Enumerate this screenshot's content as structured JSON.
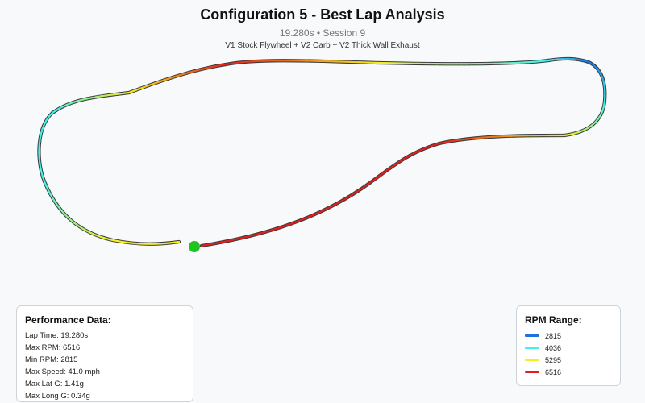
{
  "header": {
    "title": "Configuration 5 - Best Lap Analysis",
    "subtitle": "19.280s • Session 9",
    "config": "V1 Stock Flywheel + V2 Carb + V2 Thick Wall Exhaust"
  },
  "performance": {
    "heading": "Performance Data:",
    "rows": [
      "Lap Time: 19.280s",
      "Max RPM: 6516",
      "Min RPM: 2815",
      "Max Speed: 41.0 mph",
      "Max Lat G: 1.41g",
      "Max Long G: 0.34g"
    ]
  },
  "legend": {
    "heading": "RPM Range:",
    "items": [
      {
        "label": "2815",
        "color": "#1f6fe0"
      },
      {
        "label": "4036",
        "color": "#3ff0f0"
      },
      {
        "label": "5295",
        "color": "#f5f020"
      },
      {
        "label": "6516",
        "color": "#e02020"
      }
    ]
  },
  "colors": {
    "start_marker": "#1ec51e",
    "track_outline": "#3a3a3a"
  }
}
